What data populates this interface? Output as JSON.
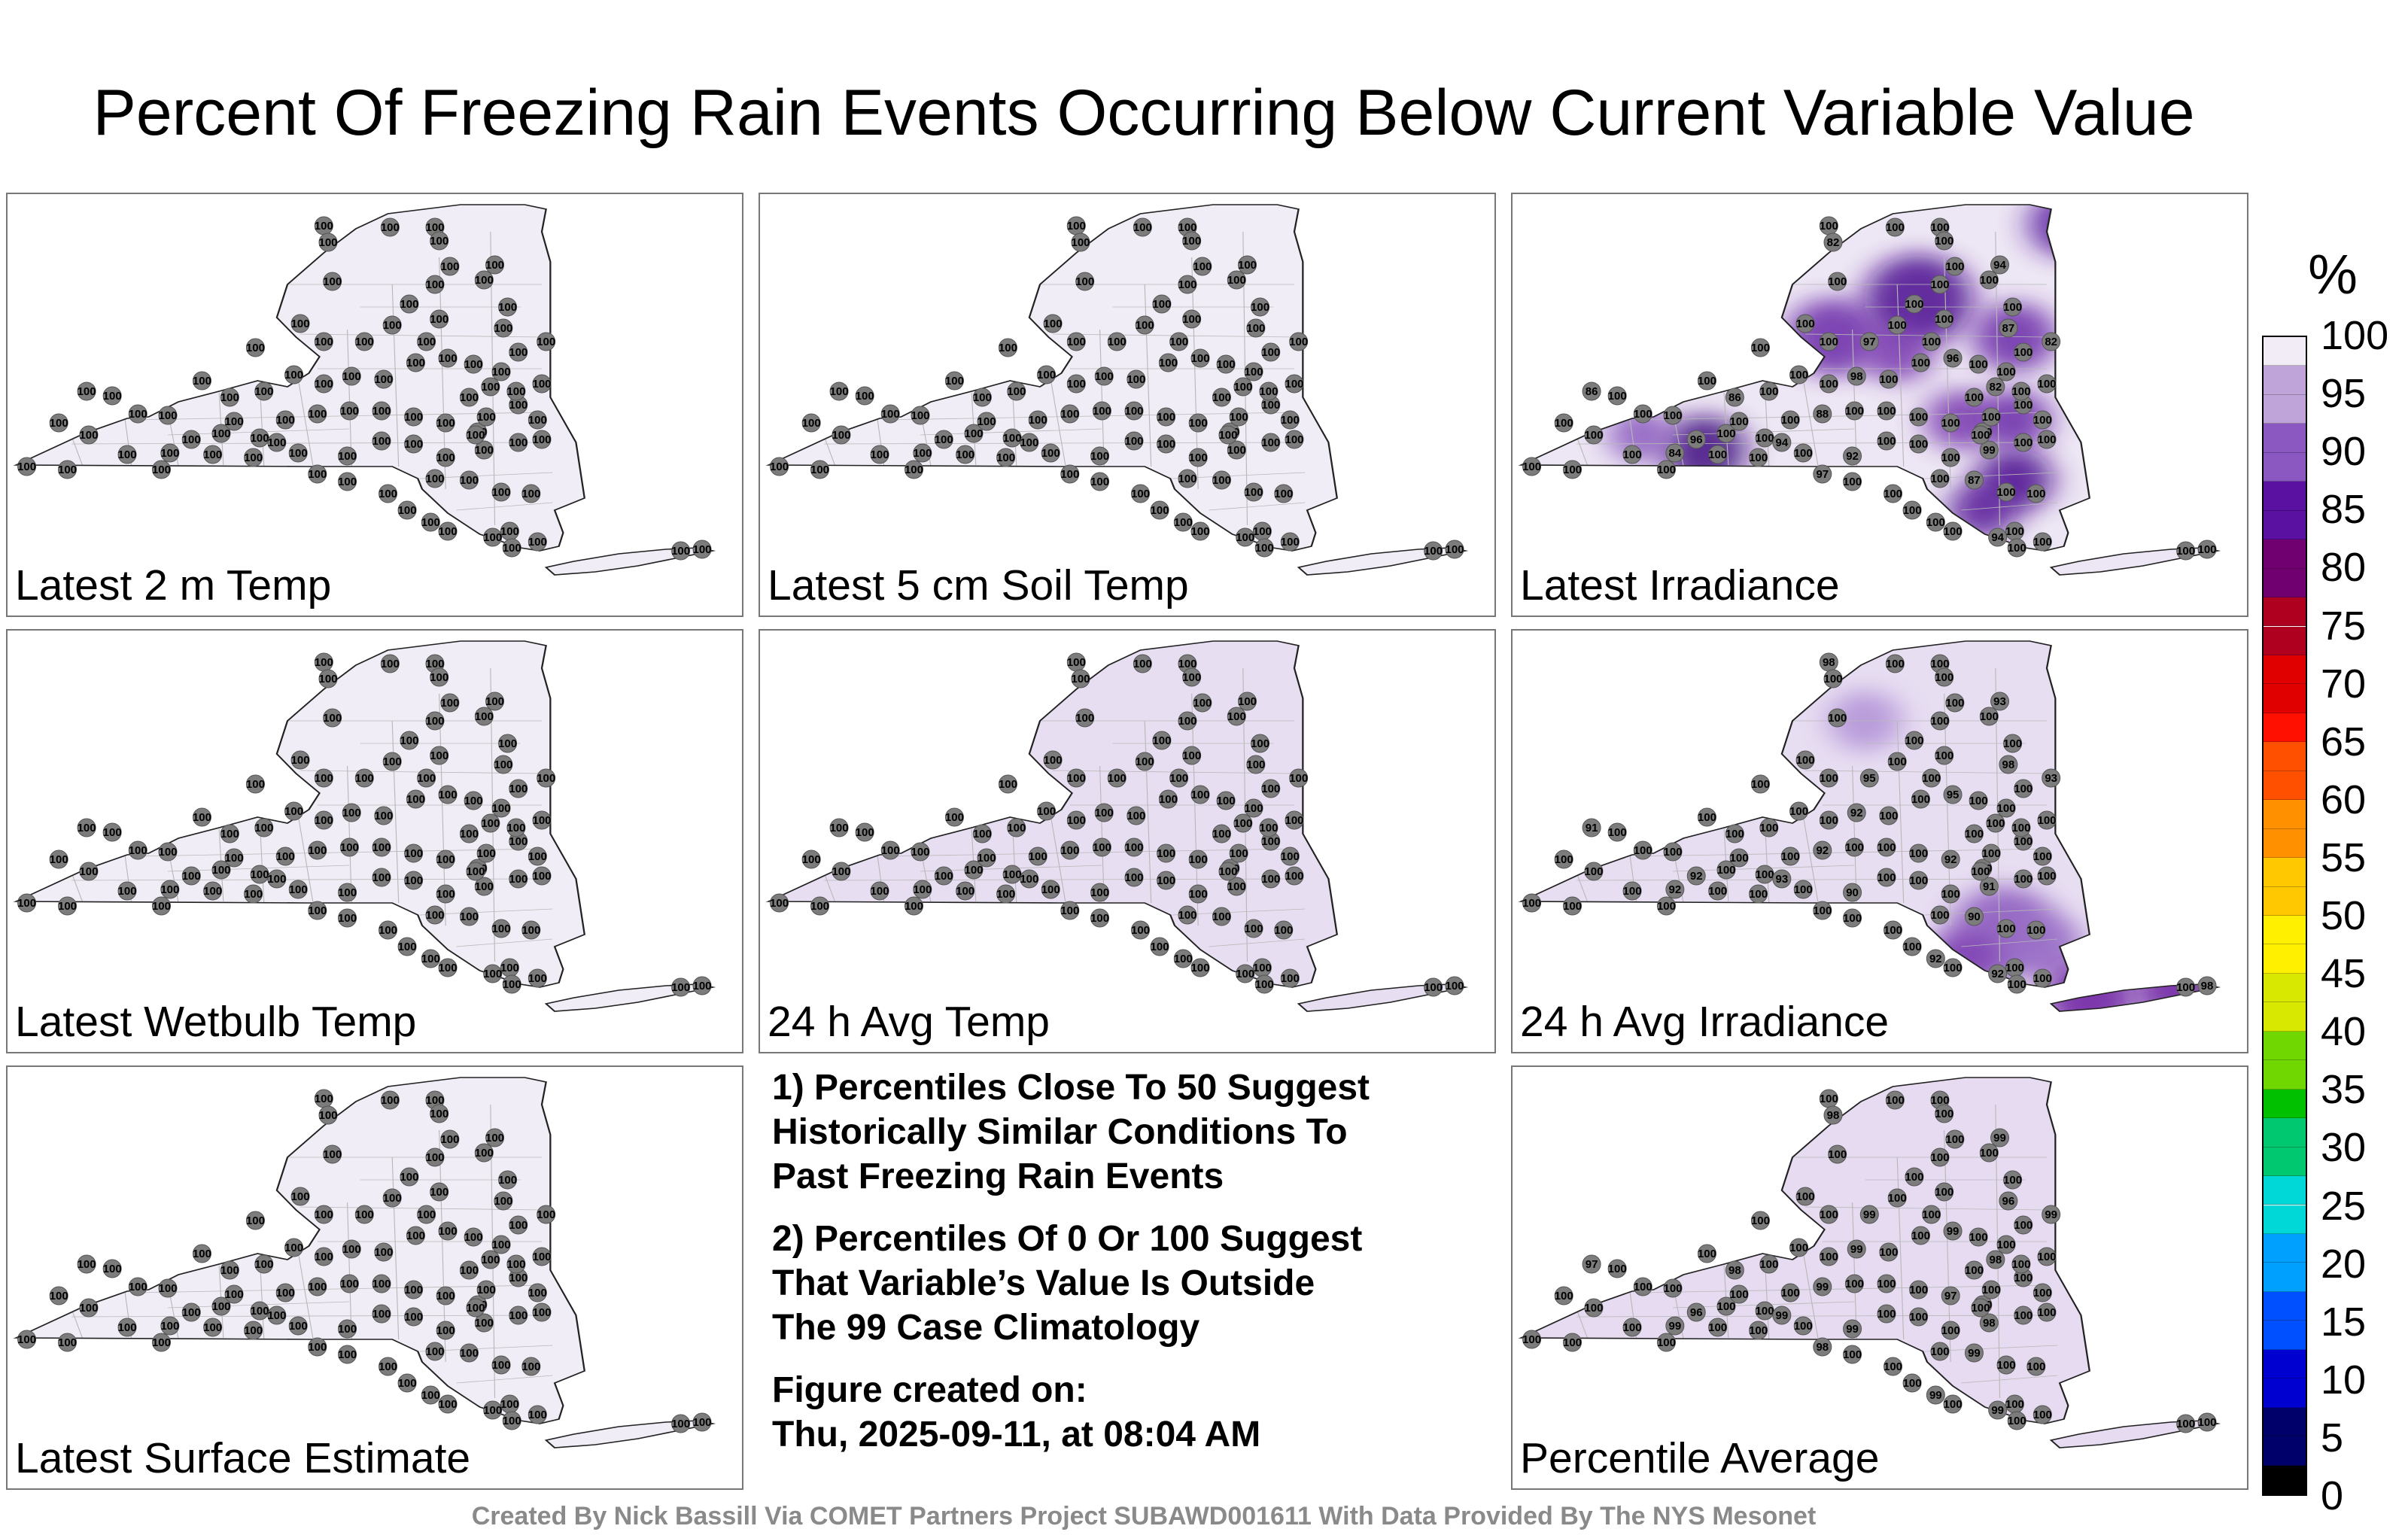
{
  "title": "Percent Of Freezing Rain Events Occurring Below Current Variable Value",
  "panels": [
    {
      "label": "Latest 2 m Temp",
      "shade": "#f1edf6",
      "hot": []
    },
    {
      "label": "Latest 5 cm Soil Temp",
      "shade": "#f1edf6",
      "hot": []
    },
    {
      "label": "Latest Irradiance",
      "shade": "#ede6f4",
      "hot": [
        "upper",
        "west",
        "hudson"
      ]
    },
    {
      "label": "Latest Wetbulb Temp",
      "shade": "#f1edf6",
      "hot": []
    },
    {
      "label": "24 h Avg Temp",
      "shade": "#e8def2",
      "hot": []
    },
    {
      "label": "24 h Avg Irradiance",
      "shade": "#e8def2",
      "hot": [
        "hudson_light",
        "li"
      ]
    },
    {
      "label": "Latest Surface Estimate",
      "shade": "#f1edf6",
      "hot": []
    },
    {
      "label": "Percentile Average",
      "shade": "#e6dbf1",
      "hot": []
    }
  ],
  "notes": [
    "1) Percentiles Close To 50 Suggest\nHistorically Similar Conditions To\nPast Freezing Rain Events",
    "2) Percentiles Of 0 Or 100 Suggest\nThat Variable’s Value Is Outside\nThe 99 Case Climatology",
    "Figure created on:\nThu, 2025-09-11, at 08:04 AM"
  ],
  "footer": "Created By Nick Bassill Via COMET Partners Project SUBAWD001611 With Data Provided By The NYS Mesonet",
  "colorbar": {
    "unit": "%",
    "ticks": [
      "100",
      "95",
      "90",
      "85",
      "80",
      "75",
      "70",
      "65",
      "60",
      "55",
      "50",
      "45",
      "40",
      "35",
      "30",
      "25",
      "20",
      "15",
      "10",
      "5",
      "0"
    ]
  },
  "station_values": {
    "default": "100",
    "irradiance": [
      "100",
      "82",
      "94",
      "87",
      "97",
      "86",
      "98",
      "96",
      "82",
      "100",
      "88",
      "96",
      "86",
      "84",
      "92",
      "99",
      "87",
      "94",
      "100",
      "97"
    ],
    "avg_irradiance": [
      "98",
      "100",
      "93",
      "98",
      "95",
      "100",
      "92",
      "95",
      "93",
      "92",
      "92",
      "92",
      "91",
      "92",
      "90",
      "91",
      "90",
      "92",
      "92",
      "100"
    ],
    "average": [
      "100",
      "98",
      "99",
      "96",
      "99",
      "98",
      "99",
      "99",
      "99",
      "97",
      "99",
      "96",
      "97",
      "99",
      "99",
      "98",
      "99",
      "99",
      "99",
      "98"
    ]
  }
}
